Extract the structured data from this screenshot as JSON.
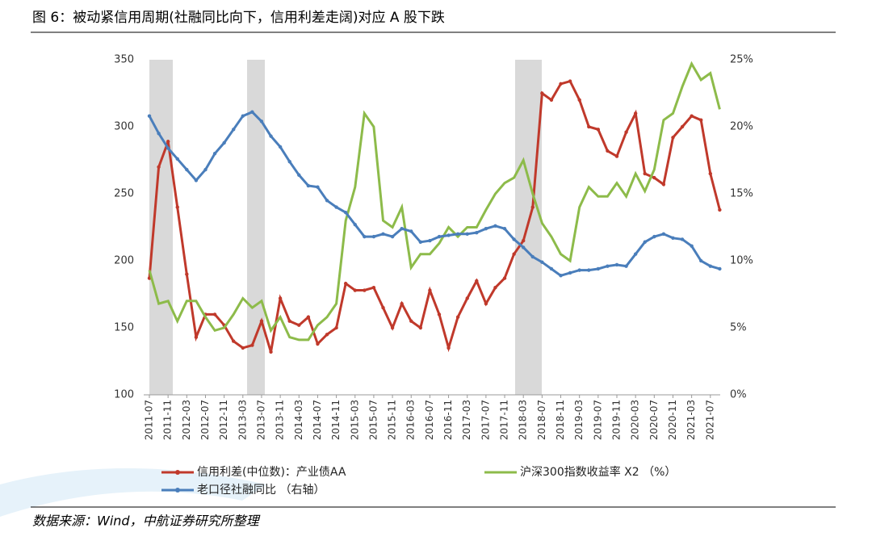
{
  "chart_data": {
    "type": "line",
    "title": "图 6：被动紧信用周期(社融同比向下，信用利差走阔)对应 A 股下跌",
    "source": "数据来源：Wind，中航证券研究所整理",
    "categories": [
      "2011-07",
      null,
      "2011-11",
      null,
      "2012-03",
      null,
      "2012-07",
      null,
      "2012-11",
      null,
      "2013-03",
      null,
      "2013-07",
      null,
      "2013-11",
      null,
      "2014-03",
      null,
      "2014-07",
      null,
      "2014-11",
      null,
      "2015-03",
      null,
      "2015-07",
      null,
      "2015-11",
      null,
      "2016-03",
      null,
      "2016-07",
      null,
      "2016-11",
      null,
      "2017-03",
      null,
      "2017-07",
      null,
      "2017-11",
      null,
      "2018-03",
      null,
      "2018-07",
      null,
      "2018-11",
      null,
      "2019-03",
      null,
      "2019-07",
      null,
      "2019-11",
      null,
      "2020-03",
      null,
      "2020-07",
      null,
      "2020-11",
      null,
      "2021-03",
      null,
      "2021-07",
      null
    ],
    "ylim": [
      100,
      350
    ],
    "yticks": [
      100,
      150,
      200,
      250,
      300,
      350
    ],
    "y2lim": [
      0,
      25
    ],
    "y2ticks": [
      {
        "value": 0,
        "label": "0%"
      },
      {
        "value": 5,
        "label": "5%"
      },
      {
        "value": 10,
        "label": "10%"
      },
      {
        "value": 15,
        "label": "15%"
      },
      {
        "value": 20,
        "label": "20%"
      },
      {
        "value": 25,
        "label": "25%"
      }
    ],
    "series": [
      {
        "name": "信用利差(中位数)：产业债AA",
        "color": "#c0392b",
        "markers": true,
        "values": [
          187,
          270,
          289,
          240,
          190,
          143,
          160,
          160,
          152,
          140,
          135,
          137,
          155,
          132,
          172,
          155,
          152,
          158,
          138,
          145,
          150,
          183,
          178,
          178,
          180,
          165,
          150,
          168,
          155,
          150,
          178,
          160,
          135,
          158,
          172,
          185,
          168,
          180,
          187,
          205,
          215,
          240,
          325,
          320,
          332,
          334,
          320,
          300,
          298,
          282,
          278,
          296,
          310,
          265,
          262,
          257,
          292,
          300,
          308,
          305,
          265,
          238
        ]
      },
      {
        "name": "沪深300指数收益率 X2 （%）",
        "color": "#8dbb4a",
        "markers": false,
        "values": [
          193,
          168,
          170,
          155,
          170,
          170,
          158,
          148,
          150,
          160,
          172,
          165,
          170,
          148,
          158,
          143,
          141,
          141,
          152,
          158,
          168,
          230,
          255,
          310,
          300,
          230,
          225,
          240,
          195,
          205,
          205,
          213,
          225,
          218,
          225,
          225,
          238,
          250,
          258,
          262,
          275,
          250,
          228,
          218,
          205,
          200,
          240,
          255,
          248,
          248,
          258,
          248,
          265,
          252,
          268,
          305,
          310,
          330,
          347,
          335,
          340,
          313
        ]
      },
      {
        "name": "老口径社融同比 （右轴）",
        "color": "#4a7ebb",
        "markers": true,
        "axis": "y2",
        "values": [
          20.8,
          19.5,
          18.4,
          17.6,
          16.8,
          16.0,
          16.8,
          18.0,
          18.8,
          19.8,
          20.8,
          21.1,
          20.4,
          19.3,
          18.5,
          17.4,
          16.4,
          15.6,
          15.5,
          14.5,
          14.0,
          13.6,
          12.7,
          11.8,
          11.8,
          12.0,
          11.8,
          12.4,
          12.2,
          11.4,
          11.5,
          11.8,
          11.9,
          12.0,
          12.0,
          12.1,
          12.4,
          12.6,
          12.4,
          11.6,
          11.0,
          10.3,
          9.9,
          9.4,
          8.9,
          9.1,
          9.3,
          9.3,
          9.4,
          9.6,
          9.7,
          9.6,
          10.5,
          11.4,
          11.8,
          12.0,
          11.7,
          11.6,
          11.1,
          10.0,
          9.6,
          9.4
        ]
      }
    ]
  }
}
